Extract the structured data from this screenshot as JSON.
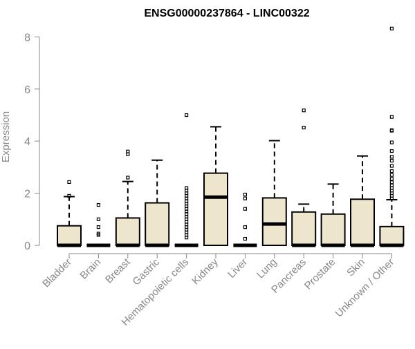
{
  "chart_data": {
    "type": "box",
    "title": "ENSG00000237864 - LINC00322",
    "ylabel": "Expression",
    "xlabel": "",
    "ylim": [
      -0.3,
      8.5
    ],
    "yticks": [
      0,
      2,
      4,
      6,
      8
    ],
    "grid": false,
    "legend": "none",
    "colors": {
      "box_fill": "#ede6cd",
      "stroke": "#000000",
      "axis": "#888888"
    },
    "categories": [
      "Bladder",
      "Brain",
      "Breast",
      "Gastric",
      "Hematopoietic cells",
      "Kidney",
      "Liver",
      "Lung",
      "Pancreas",
      "Prostate",
      "Skin",
      "Unknown / Other"
    ],
    "boxes": [
      {
        "q1": 0,
        "median": 0,
        "q3": 0.75,
        "whisker_low": 0,
        "whisker_high": 1.87,
        "outliers": [
          2.43,
          1.9
        ]
      },
      {
        "q1": 0,
        "median": 0,
        "q3": 0,
        "whisker_low": 0,
        "whisker_high": 0,
        "outliers": [
          1.55,
          1.0,
          0.7,
          0.45,
          0.4
        ]
      },
      {
        "q1": 0,
        "median": 0,
        "q3": 1.05,
        "whisker_low": 0,
        "whisker_high": 2.45,
        "outliers": [
          3.6,
          3.5,
          2.6
        ]
      },
      {
        "q1": 0,
        "median": 0,
        "q3": 1.63,
        "whisker_low": 0,
        "whisker_high": 3.27,
        "outliers": []
      },
      {
        "q1": 0,
        "median": 0,
        "q3": 0,
        "whisker_low": 0,
        "whisker_high": 0,
        "outliers": [
          5.0,
          2.2,
          2.1,
          2.0,
          1.9,
          1.8,
          1.7,
          1.6,
          1.5,
          1.4,
          1.3,
          1.2,
          1.1,
          1.0,
          0.9,
          0.8,
          0.7,
          0.6,
          0.5,
          0.4,
          0.3
        ]
      },
      {
        "q1": 0,
        "median": 1.85,
        "q3": 2.77,
        "whisker_low": 0,
        "whisker_high": 4.55,
        "outliers": []
      },
      {
        "q1": 0,
        "median": 0,
        "q3": 0,
        "whisker_low": 0,
        "whisker_high": 0,
        "outliers": [
          1.95,
          1.8,
          1.4,
          0.7,
          0.25
        ]
      },
      {
        "q1": 0,
        "median": 0.82,
        "q3": 1.82,
        "whisker_low": 0,
        "whisker_high": 4.02,
        "outliers": []
      },
      {
        "q1": 0,
        "median": 0,
        "q3": 1.28,
        "whisker_low": 0,
        "whisker_high": 1.58,
        "outliers": [
          5.18,
          4.52
        ]
      },
      {
        "q1": 0,
        "median": 0,
        "q3": 1.2,
        "whisker_low": 0,
        "whisker_high": 2.35,
        "outliers": []
      },
      {
        "q1": 0,
        "median": 0,
        "q3": 1.77,
        "whisker_low": 0,
        "whisker_high": 3.43,
        "outliers": []
      },
      {
        "q1": 0,
        "median": 0,
        "q3": 0.72,
        "whisker_low": 0,
        "whisker_high": 1.75,
        "outliers": [
          8.32,
          4.93,
          4.42,
          4.4,
          3.95,
          3.62,
          3.4,
          3.25,
          3.05,
          2.85,
          2.7,
          2.55,
          2.42,
          2.3,
          2.2,
          2.1,
          2.0,
          1.9,
          1.8
        ]
      }
    ]
  }
}
